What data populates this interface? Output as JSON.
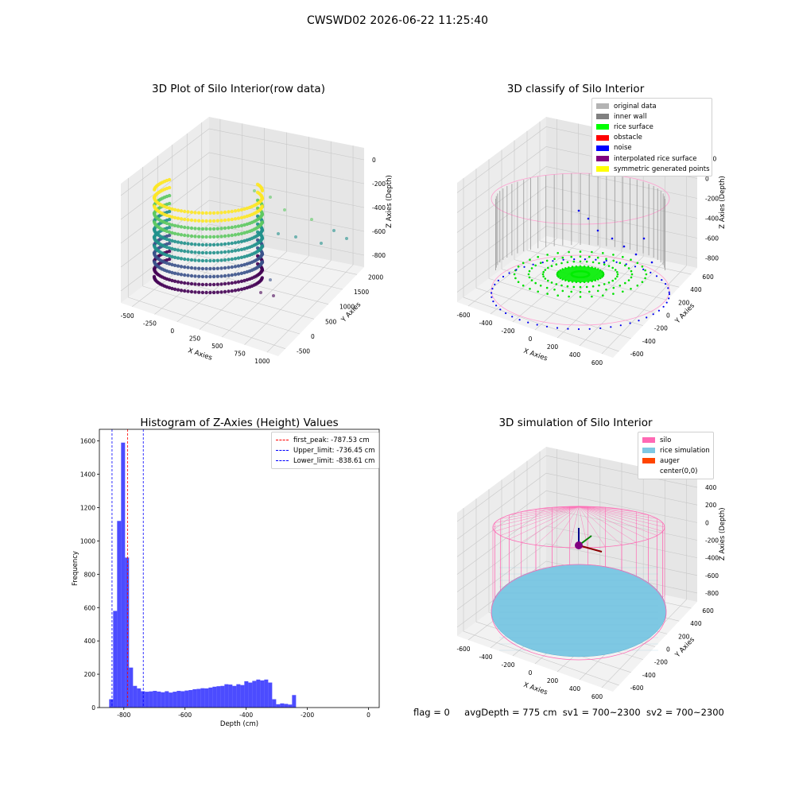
{
  "title": "CWSWD02 2026-06-22 11:25:40",
  "status": {
    "flag": "flag = 0",
    "avg_depth": "avgDepth = 775 cm",
    "sv1": "sv1 = 700~2300",
    "sv2": "sv2 = 700~2300"
  },
  "colors": {
    "viridis": [
      "#440154",
      "#3b528b",
      "#21918c",
      "#5ec962",
      "#fde725"
    ],
    "histogram": "#0000ff",
    "silo": "#ff69b4",
    "rice_simulation": "#7ec8e3",
    "auger": "#ff4500"
  },
  "chart_data": [
    {
      "type": "scatter",
      "subtype": "3d",
      "title": "3D Plot of Silo Interior(row data)",
      "xlabel": "X Axies",
      "ylabel": "Y Axies",
      "zlabel": "Z Axies (Depth)",
      "x_ticks": [
        "-500",
        "-250",
        "0",
        "250",
        "500",
        "750",
        "1000"
      ],
      "y_ticks": [
        "-500",
        "0",
        "500",
        "1000",
        "1500",
        "2000"
      ],
      "z_ticks": [
        "-800",
        "-600",
        "-400",
        "-200",
        "0"
      ],
      "colormap": "viridis",
      "grid": true
    },
    {
      "type": "scatter",
      "subtype": "3d",
      "title": "3D classify of Silo Interior",
      "xlabel": "X Axies",
      "ylabel": "Y Axies",
      "zlabel": "Z Axies (Depth)",
      "x_ticks": [
        "-600",
        "-400",
        "-200",
        "0",
        "200",
        "400",
        "600"
      ],
      "y_ticks": [
        "-600",
        "-400",
        "-200",
        "0",
        "200",
        "400",
        "600"
      ],
      "z_ticks": [
        "-800",
        "-600",
        "-400",
        "-200",
        "0",
        "200"
      ],
      "legend": [
        {
          "label": "original data",
          "color": "#b3b3b3"
        },
        {
          "label": "inner wall",
          "color": "#808080"
        },
        {
          "label": "rice surface",
          "color": "#00ff00"
        },
        {
          "label": "obstacle",
          "color": "#ff0000"
        },
        {
          "label": "noise",
          "color": "#0000ff"
        },
        {
          "label": "interpolated rice surface",
          "color": "#800080"
        },
        {
          "label": "symmetric generated points",
          "color": "#ffff00"
        }
      ],
      "legend_position": "top-right",
      "grid": true
    },
    {
      "type": "bar",
      "subtype": "histogram",
      "title": "Histogram of Z-Axies (Height) Values",
      "xlabel": "Depth (cm)",
      "ylabel": "Frequency",
      "xlim": [
        -880,
        35
      ],
      "ylim": [
        0,
        1670
      ],
      "x_ticks": [
        -800,
        -600,
        -400,
        -200,
        0
      ],
      "y_ticks": [
        0,
        200,
        400,
        600,
        800,
        1000,
        1200,
        1400,
        1600
      ],
      "bin_width": 13,
      "bin_start": -848,
      "values": [
        50,
        580,
        1120,
        1590,
        900,
        240,
        130,
        115,
        98,
        95,
        97,
        100,
        96,
        92,
        98,
        90,
        95,
        100,
        98,
        102,
        105,
        110,
        112,
        116,
        115,
        120,
        125,
        128,
        130,
        140,
        138,
        130,
        140,
        135,
        158,
        150,
        160,
        168,
        163,
        168,
        150,
        50,
        20,
        25,
        22,
        18,
        75
      ],
      "vlines": [
        {
          "label": "first_peak: -787.53 cm",
          "value": -787.53,
          "color": "#ff0000"
        },
        {
          "label": "Upper_limit: -736.45 cm",
          "value": -736.45,
          "color": "#0000ff"
        },
        {
          "label": "Lower_limit: -838.61 cm",
          "value": -838.61,
          "color": "#0000ff"
        }
      ],
      "legend_position": "top-right"
    },
    {
      "type": "scatter",
      "subtype": "3d",
      "title": "3D simulation of Silo Interior",
      "xlabel": "X Axies",
      "ylabel": "Y Axies",
      "zlabel": "Z Axies (Depth)",
      "x_ticks": [
        "-600",
        "-400",
        "-200",
        "0",
        "200",
        "400",
        "600"
      ],
      "y_ticks": [
        "-600",
        "-400",
        "-200",
        "0",
        "200",
        "400",
        "600"
      ],
      "z_ticks": [
        "-800",
        "-600",
        "-400",
        "-200",
        "0",
        "200",
        "400"
      ],
      "legend": [
        {
          "label": "silo",
          "color": "#ff69b4"
        },
        {
          "label": "rice simulation",
          "color": "#7ec8e3"
        },
        {
          "label": "auger",
          "color": "#ff4500"
        },
        {
          "label": "center(0,0)",
          "color": "#ffffff"
        }
      ],
      "legend_position": "top-right",
      "grid": true
    }
  ]
}
